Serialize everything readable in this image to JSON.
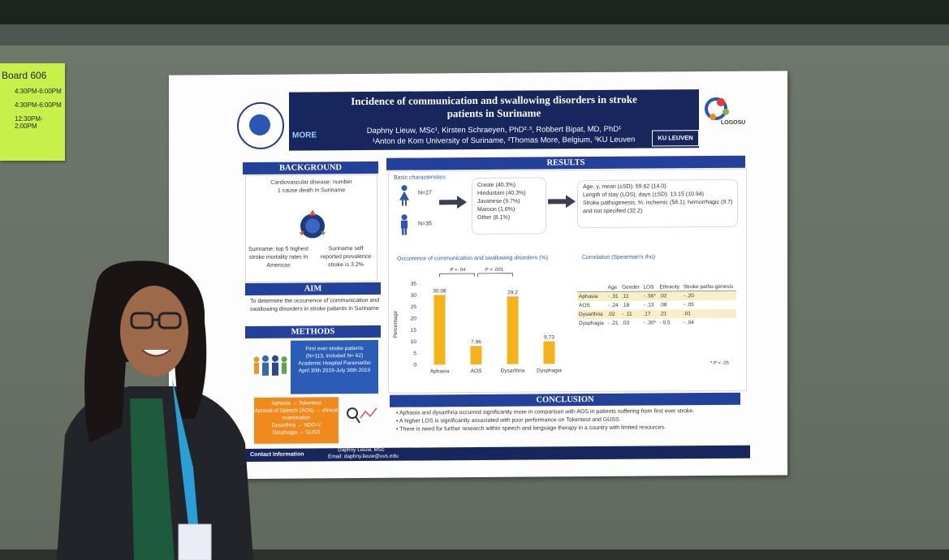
{
  "board_note": {
    "title": "Board 606",
    "times": [
      "4:30PM-6:00PM",
      "4:30PM-6:00PM",
      "12:30PM-2:00PM"
    ]
  },
  "poster": {
    "title_line1": "Incidence of communication and swallowing disorders in stroke",
    "title_line2": "patients in Suriname",
    "authors": "Daphny Lieuw, MSc¹, Kirsten Schraeyen, PhD²·³, Robbert Bipat, MD, PhD¹",
    "affiliations": "¹Anton de Kom University of Suriname, ²Thomas More, Belgium, ³KU Leuven",
    "ku_leuven": "KU LEUVEN",
    "logosu": "LOGOSU",
    "thomas_more": "MORE",
    "background": {
      "heading": "BACKGROUND",
      "text1": "Cardiovascular disease: number 1 cause death in Suriname",
      "text2_left": "Suriname: top 5 highest stroke mortality rates in Americas",
      "text2_right": "Suriname self reported prevalence stroke is 3.2%"
    },
    "aim": {
      "heading": "AIM",
      "text": "To determine the occurrence of communication and swallowing disorders in stroke patients in Suriname"
    },
    "methods": {
      "heading": "METHODS",
      "box_line1": "First ever stroke patients",
      "box_line2": "(N=113, included N= 62)",
      "box_line3": "Academic Hospital Paramaribo",
      "box_line4": "April 30th 2019-July 30th 2019",
      "tests": [
        "Aphasia → Tokentest",
        "Apraxia of Speech (AOS) → clinical examination",
        "Dysarthria → NDO-V",
        "Dysphagia → GUSS"
      ]
    },
    "results": {
      "heading": "RESULTS",
      "basic": "Basic characteristics",
      "n_female": "N=27",
      "n_male": "N=35",
      "ethnicity": [
        "Creole (40.3%)",
        "Hindustani (40.3%)",
        "Javanese (9.7%)",
        "Maroon (1.6%)",
        "Other (8.1%)"
      ],
      "stats": [
        "Age, y, mean (±SD): 59.62 (14.0)",
        "Length of stay (LOS), days (±SD): 13.15 (10.94)",
        "Stroke pathogenesis, %: ischemic (58.1), hemorrhagic (9.7) and not specified (32.2)"
      ],
      "chart_title": "Occurrence of communication and swallowing disorders (%)",
      "p1": "P = .04",
      "p2": "P = .001",
      "ylabel": "Percentage",
      "corr_title": "Correlation (Spearman's rho)",
      "corr_headers": [
        "",
        "Age",
        "Gender",
        "LOS",
        "Ethnicity",
        "Stroke patho-genesis"
      ],
      "corr_rows": [
        [
          "Aphasia",
          "- .31",
          ".11",
          "- .56*",
          ".02",
          "- .20"
        ],
        [
          "AOS",
          "- .24",
          ".18",
          "- .13",
          ".08",
          "- .05"
        ],
        [
          "Dysarthria",
          ".02",
          "- .11",
          ".17",
          ".21",
          ".01"
        ],
        [
          "Dysphagia",
          "- .21",
          ".03",
          "- .30*",
          "- 0.5",
          "- .04"
        ]
      ],
      "corr_note": "* P < .05"
    },
    "conclusion": {
      "heading": "CONCLUSION",
      "items": [
        "Aphasia and dysarthria occurred significantly more in comparison with AOS in patients suffering from first ever stroke.",
        "A higher LOS is significantly associated with poor performance on Tokentest and GUSS.",
        "There is need for further research within speech and language therapy in a country with limited resources."
      ]
    },
    "contact": {
      "label": "Contact Information",
      "name": "Daphny Lieuw, MSc",
      "email": "Email: daphny.lieuw@uvs.edu"
    }
  },
  "chart_data": {
    "type": "bar",
    "title": "Occurrence of communication and swallowing disorders (%)",
    "categories": [
      "Aphasia",
      "AOS",
      "Dysarthria",
      "Dysphagia"
    ],
    "values": [
      30.08,
      7.96,
      29.2,
      9.73
    ],
    "ylabel": "Percentage",
    "ylim": [
      0,
      35
    ],
    "yticks": [
      0,
      5,
      10,
      15,
      20,
      25,
      30,
      35
    ],
    "annotations": [
      "P = .04",
      "P = .001"
    ],
    "color": "#f5b21b"
  },
  "colors": {
    "navy": "#17275e",
    "blue": "#23409a",
    "orange": "#f08a1c",
    "bar": "#f5b21b"
  }
}
